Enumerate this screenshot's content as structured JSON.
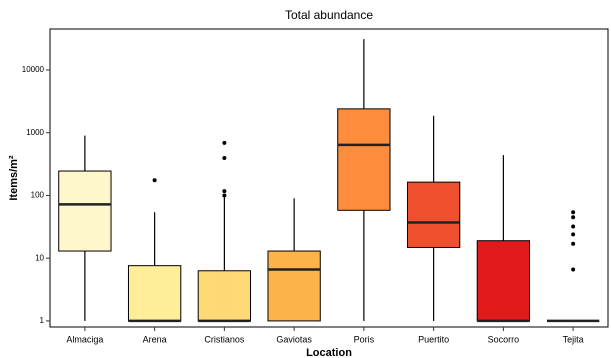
{
  "chart_data": {
    "type": "box",
    "title": "Total abundance",
    "y_label": "Items/m²",
    "x_label": "Location",
    "log_y": true,
    "ylim": [
      0.8,
      45000
    ],
    "yticks": [
      1,
      10,
      100,
      1000,
      10000
    ],
    "categories": [
      "Almaciga",
      "Arena",
      "Cristianos",
      "Gaviotas",
      "Poris",
      "Puertito",
      "Socorro",
      "Tejita"
    ],
    "boxes": [
      {
        "color": "#fff7cc",
        "whisker_low": 1,
        "q1": 13,
        "median": 72,
        "q3": 245,
        "whisker_high": 900,
        "outliers": []
      },
      {
        "color": "#ffee99",
        "whisker_low": 1,
        "q1": 1,
        "median": 1,
        "q3": 7.6,
        "whisker_high": 54,
        "outliers": [
          175
        ]
      },
      {
        "color": "#fed976",
        "whisker_low": 1,
        "q1": 1,
        "median": 1,
        "q3": 6.3,
        "whisker_high": 93,
        "outliers": [
          690,
          395,
          117,
          100
        ]
      },
      {
        "color": "#feb24c",
        "whisker_low": 1,
        "q1": 1,
        "median": 6.6,
        "q3": 13,
        "whisker_high": 90,
        "outliers": []
      },
      {
        "color": "#fd8d3c",
        "whisker_low": 1,
        "q1": 58,
        "median": 640,
        "q3": 2400,
        "whisker_high": 31000,
        "outliers": []
      },
      {
        "color": "#f0502e",
        "whisker_low": 1,
        "q1": 14.8,
        "median": 37,
        "q3": 163,
        "whisker_high": 1860,
        "outliers": []
      },
      {
        "color": "#e31a1c",
        "whisker_low": 1,
        "q1": 1,
        "median": 1,
        "q3": 19,
        "whisker_high": 440,
        "outliers": []
      },
      {
        "color": "#bd0026",
        "whisker_low": 1,
        "q1": 1,
        "median": 1,
        "q3": 1,
        "whisker_high": 1,
        "outliers": [
          54,
          45,
          32,
          24,
          17,
          6.6
        ]
      }
    ]
  }
}
